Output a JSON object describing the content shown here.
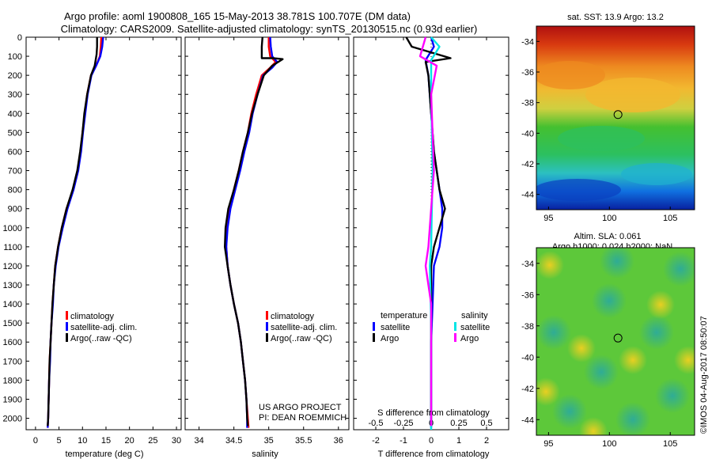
{
  "header": {
    "title_line1": "Argo profile: aoml 1900808_165 15-May-2013 38.781S 100.707E (DM data)",
    "title_line2": "Climatology: CARS2009. Satellite-adjusted climatology: synTS_20130515.nc (0.93d earlier)"
  },
  "colors": {
    "climatology": "#ff0000",
    "satellite": "#0000ff",
    "argo": "#000000",
    "s_satellite": "#00e5e5",
    "s_argo": "#ff00ff"
  },
  "chart_data": [
    {
      "type": "line",
      "panel": "temperature",
      "xlabel": "temperature (deg C)",
      "ylabel": "",
      "xlim": [
        -2,
        31
      ],
      "ylim": [
        2060,
        0
      ],
      "xticks": [
        0,
        5,
        10,
        15,
        20,
        25,
        30
      ],
      "yticks": [
        0,
        100,
        200,
        300,
        400,
        500,
        600,
        700,
        800,
        900,
        1000,
        1100,
        1200,
        1300,
        1400,
        1500,
        1600,
        1700,
        1800,
        1900,
        2000
      ],
      "legend": [
        "climatology",
        "satellite-adj. clim.",
        "Argo(..raw -QC)"
      ],
      "series": [
        {
          "name": "climatology",
          "color": "#ff0000",
          "points": [
            [
              14.0,
              0
            ],
            [
              13.9,
              50
            ],
            [
              13.7,
              100
            ],
            [
              12.9,
              150
            ],
            [
              11.8,
              200
            ],
            [
              11.0,
              300
            ],
            [
              10.5,
              400
            ],
            [
              10.0,
              500
            ],
            [
              9.6,
              600
            ],
            [
              9.0,
              700
            ],
            [
              8.0,
              800
            ],
            [
              6.6,
              900
            ],
            [
              5.6,
              1000
            ],
            [
              4.8,
              1100
            ],
            [
              4.2,
              1200
            ],
            [
              3.9,
              1300
            ],
            [
              3.6,
              1400
            ],
            [
              3.4,
              1500
            ],
            [
              3.2,
              1600
            ],
            [
              3.0,
              1700
            ],
            [
              2.9,
              1800
            ],
            [
              2.8,
              1900
            ],
            [
              2.7,
              2000
            ],
            [
              2.6,
              2050
            ]
          ]
        },
        {
          "name": "satellite-adj. clim.",
          "color": "#0000ff",
          "points": [
            [
              14.4,
              0
            ],
            [
              14.2,
              50
            ],
            [
              13.8,
              100
            ],
            [
              12.9,
              150
            ],
            [
              11.9,
              200
            ],
            [
              11.1,
              300
            ],
            [
              10.6,
              400
            ],
            [
              10.1,
              500
            ],
            [
              9.7,
              600
            ],
            [
              9.1,
              700
            ],
            [
              8.1,
              800
            ],
            [
              6.8,
              900
            ],
            [
              5.8,
              1000
            ],
            [
              4.9,
              1100
            ],
            [
              4.3,
              1200
            ],
            [
              3.9,
              1300
            ],
            [
              3.7,
              1400
            ],
            [
              3.4,
              1500
            ],
            [
              3.2,
              1600
            ],
            [
              3.1,
              1700
            ],
            [
              2.9,
              1800
            ],
            [
              2.8,
              1900
            ],
            [
              2.7,
              2000
            ],
            [
              2.6,
              2050
            ]
          ]
        },
        {
          "name": "Argo(..raw -QC)",
          "color": "#000000",
          "points": [
            [
              13.1,
              0
            ],
            [
              13.1,
              50
            ],
            [
              13.0,
              90
            ],
            [
              12.6,
              150
            ],
            [
              11.8,
              200
            ],
            [
              11.0,
              300
            ],
            [
              10.4,
              400
            ],
            [
              10.0,
              500
            ],
            [
              9.5,
              600
            ],
            [
              8.9,
              700
            ],
            [
              7.9,
              800
            ],
            [
              6.6,
              900
            ],
            [
              5.6,
              1000
            ],
            [
              4.8,
              1100
            ],
            [
              4.2,
              1200
            ],
            [
              3.9,
              1300
            ],
            [
              3.6,
              1400
            ],
            [
              3.4,
              1500
            ],
            [
              3.2,
              1600
            ],
            [
              3.0,
              1700
            ],
            [
              2.9,
              1800
            ],
            [
              2.8,
              1900
            ],
            [
              2.7,
              2000
            ],
            [
              2.6,
              2040
            ]
          ]
        }
      ]
    },
    {
      "type": "line",
      "panel": "salinity",
      "xlabel": "salinity",
      "xlim": [
        33.8,
        36.15
      ],
      "ylim": [
        2060,
        0
      ],
      "xticks": [
        34,
        34.5,
        35,
        35.5,
        36
      ],
      "xticklabels": [
        "34",
        "34.5",
        "35",
        "35.5",
        "36"
      ],
      "legend": [
        "climatology",
        "satellite-adj. clim.",
        "Argo(..raw -QC)"
      ],
      "annotation": [
        "US ARGO PROJECT",
        "PI: DEAN ROEMMICH"
      ],
      "series": [
        {
          "name": "climatology",
          "color": "#ff0000",
          "points": [
            [
              35.0,
              0
            ],
            [
              35.0,
              50
            ],
            [
              35.02,
              100
            ],
            [
              35.1,
              130
            ],
            [
              35.02,
              160
            ],
            [
              34.9,
              200
            ],
            [
              34.82,
              300
            ],
            [
              34.75,
              400
            ],
            [
              34.7,
              500
            ],
            [
              34.63,
              600
            ],
            [
              34.57,
              700
            ],
            [
              34.5,
              800
            ],
            [
              34.43,
              900
            ],
            [
              34.4,
              1000
            ],
            [
              34.39,
              1100
            ],
            [
              34.41,
              1200
            ],
            [
              34.45,
              1300
            ],
            [
              34.5,
              1400
            ],
            [
              34.56,
              1500
            ],
            [
              34.6,
              1600
            ],
            [
              34.63,
              1700
            ],
            [
              34.66,
              1800
            ],
            [
              34.68,
              1900
            ],
            [
              34.7,
              2000
            ],
            [
              34.71,
              2050
            ]
          ]
        },
        {
          "name": "satellite-adj. clim.",
          "color": "#0000ff",
          "points": [
            [
              35.02,
              0
            ],
            [
              35.03,
              50
            ],
            [
              35.05,
              100
            ],
            [
              35.12,
              130
            ],
            [
              35.05,
              160
            ],
            [
              34.92,
              200
            ],
            [
              34.84,
              300
            ],
            [
              34.77,
              400
            ],
            [
              34.72,
              500
            ],
            [
              34.65,
              600
            ],
            [
              34.59,
              700
            ],
            [
              34.52,
              800
            ],
            [
              34.45,
              900
            ],
            [
              34.41,
              1000
            ],
            [
              34.39,
              1100
            ],
            [
              34.41,
              1200
            ],
            [
              34.45,
              1300
            ],
            [
              34.5,
              1400
            ],
            [
              34.56,
              1500
            ],
            [
              34.6,
              1600
            ],
            [
              34.63,
              1700
            ],
            [
              34.66,
              1800
            ],
            [
              34.68,
              1900
            ],
            [
              34.69,
              2000
            ],
            [
              34.69,
              2050
            ]
          ]
        },
        {
          "name": "Argo(..raw -QC)",
          "color": "#000000",
          "points": [
            [
              34.91,
              0
            ],
            [
              34.9,
              50
            ],
            [
              34.9,
              110
            ],
            [
              35.06,
              110
            ],
            [
              35.2,
              115
            ],
            [
              35.05,
              150
            ],
            [
              34.93,
              200
            ],
            [
              34.84,
              300
            ],
            [
              34.76,
              400
            ],
            [
              34.7,
              500
            ],
            [
              34.63,
              600
            ],
            [
              34.57,
              700
            ],
            [
              34.5,
              800
            ],
            [
              34.42,
              900
            ],
            [
              34.38,
              1000
            ],
            [
              34.37,
              1100
            ],
            [
              34.41,
              1200
            ],
            [
              34.45,
              1300
            ],
            [
              34.5,
              1400
            ],
            [
              34.56,
              1500
            ],
            [
              34.6,
              1600
            ],
            [
              34.63,
              1700
            ],
            [
              34.66,
              1800
            ],
            [
              34.68,
              1900
            ],
            [
              34.69,
              2000
            ],
            [
              34.7,
              2040
            ]
          ]
        }
      ]
    },
    {
      "type": "line",
      "panel": "difference",
      "xlabel": "T difference from climatology",
      "xlabel_top": "S difference from climatology",
      "xlim": [
        -2.8,
        2.8
      ],
      "ylim": [
        2060,
        0
      ],
      "xticks": [
        -2,
        -1,
        0,
        1,
        2
      ],
      "s_ticks": [
        "-0.5",
        "-0.25",
        "0",
        "0.25",
        "0.5"
      ],
      "legend_headings": [
        "temperature",
        "salinity"
      ],
      "legend": [
        "satellite",
        "Argo",
        "satellite",
        "Argo"
      ],
      "series": [
        {
          "name": "temperature satellite",
          "color": "#0000ff",
          "points": [
            [
              0.0,
              0
            ],
            [
              0.1,
              50
            ],
            [
              -0.2,
              120
            ],
            [
              -0.1,
              200
            ],
            [
              0.0,
              400
            ],
            [
              0.1,
              600
            ],
            [
              0.3,
              800
            ],
            [
              0.4,
              900
            ],
            [
              0.4,
              1000
            ],
            [
              0.3,
              1100
            ],
            [
              0.1,
              1200
            ],
            [
              0.05,
              1400
            ],
            [
              0.0,
              1600
            ],
            [
              0.0,
              2000
            ],
            [
              0.0,
              2050
            ]
          ]
        },
        {
          "name": "temperature Argo",
          "color": "#000000",
          "points": [
            [
              -0.9,
              0
            ],
            [
              -0.7,
              50
            ],
            [
              0.7,
              110
            ],
            [
              -0.2,
              130
            ],
            [
              -0.1,
              200
            ],
            [
              0.0,
              400
            ],
            [
              0.1,
              600
            ],
            [
              0.3,
              800
            ],
            [
              0.5,
              900
            ],
            [
              0.3,
              1000
            ],
            [
              0.1,
              1100
            ],
            [
              0.0,
              1200
            ],
            [
              0.0,
              1600
            ],
            [
              0.0,
              2000
            ],
            [
              0.0,
              2040
            ]
          ]
        },
        {
          "name": "salinity satellite",
          "color": "#00e5e5",
          "points": [
            [
              0.0,
              0
            ],
            [
              0.3,
              50
            ],
            [
              0.0,
              120
            ],
            [
              0.0,
              300
            ],
            [
              0.05,
              700
            ],
            [
              0.0,
              1100
            ],
            [
              -0.05,
              1200
            ],
            [
              0.0,
              1500
            ],
            [
              0.0,
              2000
            ],
            [
              0.0,
              2060
            ]
          ]
        },
        {
          "name": "salinity Argo",
          "color": "#ff00ff",
          "points": [
            [
              -0.2,
              0
            ],
            [
              -0.3,
              50
            ],
            [
              -0.4,
              100
            ],
            [
              0.2,
              150
            ],
            [
              0.0,
              300
            ],
            [
              0.1,
              700
            ],
            [
              -0.1,
              1100
            ],
            [
              -0.2,
              1200
            ],
            [
              0.0,
              1400
            ],
            [
              0.0,
              2000
            ],
            [
              0.0,
              2040
            ]
          ]
        }
      ]
    },
    {
      "type": "heatmap",
      "panel": "sst_map",
      "title": "sat. SST: 13.9 Argo: 13.2",
      "xlim": [
        94,
        107
      ],
      "ylim": [
        -45,
        -33
      ],
      "xticks": [
        95,
        100,
        105
      ],
      "yticks": [
        -34,
        -36,
        -38,
        -40,
        -42,
        -44
      ],
      "marker": {
        "lon": 100.707,
        "lat": -38.781
      }
    },
    {
      "type": "heatmap",
      "panel": "sla_map",
      "title_line1": "Altim. SLA: 0.061",
      "title_line2": "Argo h1000: 0.024 h2000: NaN",
      "xlim": [
        94,
        107
      ],
      "ylim": [
        -45,
        -33
      ],
      "xticks": [
        95,
        100,
        105
      ],
      "yticks": [
        -34,
        -36,
        -38,
        -40,
        -42,
        -44
      ],
      "marker": {
        "lon": 100.707,
        "lat": -38.781
      }
    }
  ],
  "footer": {
    "credit": "©IMOS 04-Aug-2017 08:50:07"
  }
}
